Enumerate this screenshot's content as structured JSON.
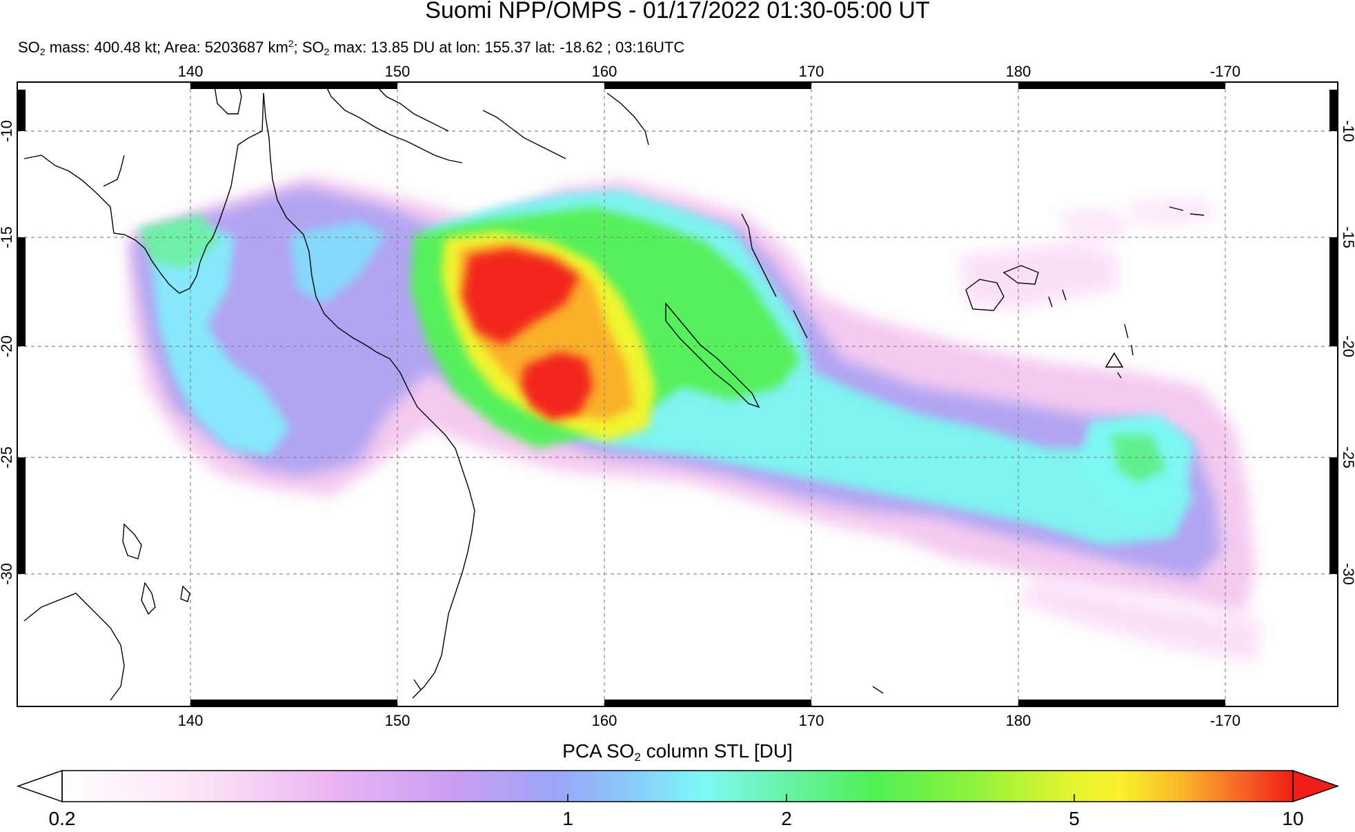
{
  "title": "Suomi NPP/OMPS - 01/17/2022 01:30-05:00 UT",
  "subtitle": {
    "so2_label": "SO",
    "sub2": "2",
    "mass_text": " mass: 400.48 kt; Area: 5203687 km",
    "sup2": "2",
    "sep": "; SO",
    "sub2b": "2",
    "max_text": " max: 13.85 DU at lon: 155.37 lat: -18.62 ; 03:16UTC"
  },
  "map": {
    "lon_labels": [
      "140",
      "150",
      "160",
      "170",
      "180",
      "-170"
    ],
    "lat_labels": [
      "-10",
      "-15",
      "-20",
      "-25",
      "-30"
    ],
    "volcano_marker": "triangle-icon"
  },
  "colorbar": {
    "title_prefix": "PCA SO",
    "title_sub": "2",
    "title_suffix": " column STL [DU]",
    "tick_labels": [
      "0.2",
      "1",
      "2",
      "5",
      "10"
    ],
    "colors": [
      "#ffffff",
      "#fbdcf6",
      "#eab2f2",
      "#c49cf2",
      "#9aa2f5",
      "#82c8fb",
      "#7ef7f7",
      "#6af2a8",
      "#4ff055",
      "#8ff23c",
      "#e3f530",
      "#fbf52c",
      "#fbc12c",
      "#f78626",
      "#f3441e",
      "#f01e16"
    ]
  }
}
